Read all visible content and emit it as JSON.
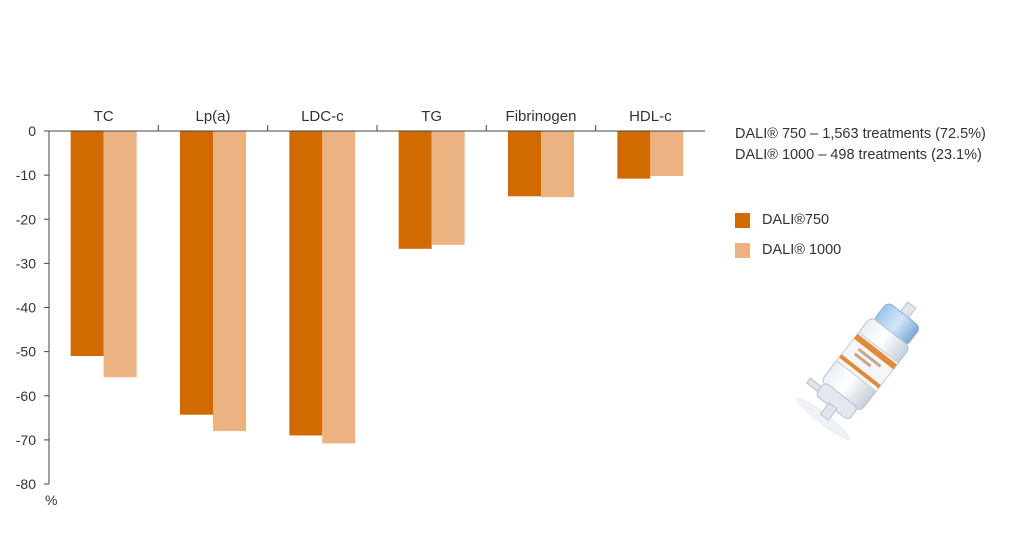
{
  "chart_data": {
    "type": "bar",
    "categories": [
      "TC",
      "Lp(a)",
      "LDC-c",
      "TG",
      "Fibrinogen",
      "HDL-c"
    ],
    "series": [
      {
        "name": "DALI®750",
        "color": "#D16A00",
        "values": [
          -51,
          -64.3,
          -69,
          -26.7,
          -14.8,
          -10.8
        ]
      },
      {
        "name": "DALI® 1000",
        "color": "#ECB382",
        "values": [
          -55.8,
          -68,
          -70.8,
          -25.8,
          -15,
          -10.2
        ]
      }
    ],
    "yticks": [
      0,
      -10,
      -20,
      -30,
      -40,
      -50,
      -60,
      -70,
      -80
    ],
    "ylim": [
      -80,
      0
    ],
    "yunit": "%",
    "legend_position": "right"
  },
  "notes": [
    "DALI® 750 – 1,563 treatments (72.5%)",
    "DALI® 1000 – 498 treatments (23.1%)"
  ],
  "legend": [
    {
      "label": "DALI®750",
      "color": "#D16A00"
    },
    {
      "label": "DALI® 1000",
      "color": "#ECB382"
    }
  ]
}
